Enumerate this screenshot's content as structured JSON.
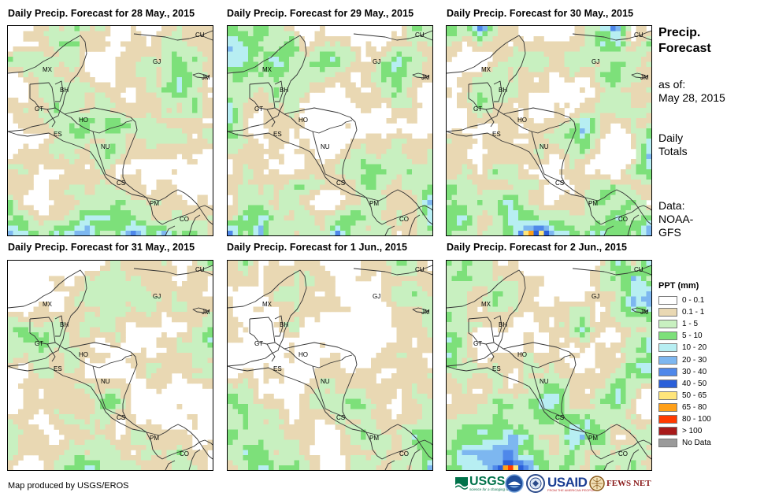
{
  "panels": [
    {
      "title": "Daily Precip. Forecast for 28 May., 2015",
      "seed": 11,
      "heavy": 0.9,
      "coverage": 0.7,
      "biasTop": 0.45
    },
    {
      "title": "Daily Precip. Forecast for 29 May., 2015",
      "seed": 23,
      "heavy": 0.35,
      "coverage": 0.72,
      "biasTop": 0.55
    },
    {
      "title": "Daily Precip. Forecast for 30 May., 2015",
      "seed": 37,
      "heavy": 0.45,
      "coverage": 0.74,
      "biasTop": 0.55
    },
    {
      "title": "Daily Precip. Forecast for 31 May., 2015",
      "seed": 41,
      "heavy": 0.3,
      "coverage": 0.65,
      "biasTop": 0.6
    },
    {
      "title": "Daily Precip. Forecast for 1 Jun., 2015",
      "seed": 53,
      "heavy": 0.35,
      "coverage": 0.68,
      "biasTop": 0.55
    },
    {
      "title": "Daily Precip. Forecast for 2 Jun., 2015",
      "seed": 67,
      "heavy": 0.75,
      "coverage": 0.82,
      "biasTop": 0.4
    }
  ],
  "country_labels": [
    "CU",
    "GJ",
    "MX",
    "JM",
    "BH",
    "GT",
    "HO",
    "ES",
    "NU",
    "CS",
    "PM",
    "CO"
  ],
  "sidebar": {
    "title_line1": "Precip.",
    "title_line2": "Forecast",
    "asof_label": "as of:",
    "asof_date": "May 28, 2015",
    "totals_line1": "Daily",
    "totals_line2": "Totals",
    "data_line1": "Data:",
    "data_line2": "NOAA-",
    "data_line3": "GFS"
  },
  "legend": {
    "title": "PPT (mm)",
    "items": [
      {
        "label": "0 - 0.1",
        "color": "#ffffff"
      },
      {
        "label": "0.1 - 1",
        "color": "#e9d8b3"
      },
      {
        "label": "1 - 5",
        "color": "#c8f0c0"
      },
      {
        "label": "5 - 10",
        "color": "#7de07a"
      },
      {
        "label": "10 - 20",
        "color": "#b7eef2"
      },
      {
        "label": "20 - 30",
        "color": "#7db7f0"
      },
      {
        "label": "30 - 40",
        "color": "#4f88ea"
      },
      {
        "label": "40 - 50",
        "color": "#2a5fd9"
      },
      {
        "label": "50 - 65",
        "color": "#ffe57a"
      },
      {
        "label": "65 - 80",
        "color": "#ffa019"
      },
      {
        "label": "80 - 100",
        "color": "#ff3a00"
      },
      {
        "label": "> 100",
        "color": "#a81a1a"
      },
      {
        "label": "No Data",
        "color": "#9a9a9a"
      }
    ]
  },
  "credit": "Map produced by USGS/EROS",
  "logos": {
    "usgs": "USGS",
    "usgs_tag": "science for a changing world",
    "usaid": "USAID",
    "usaid_tag": "FROM THE AMERICAN PEOPLE",
    "fews": "FEWS NET"
  }
}
